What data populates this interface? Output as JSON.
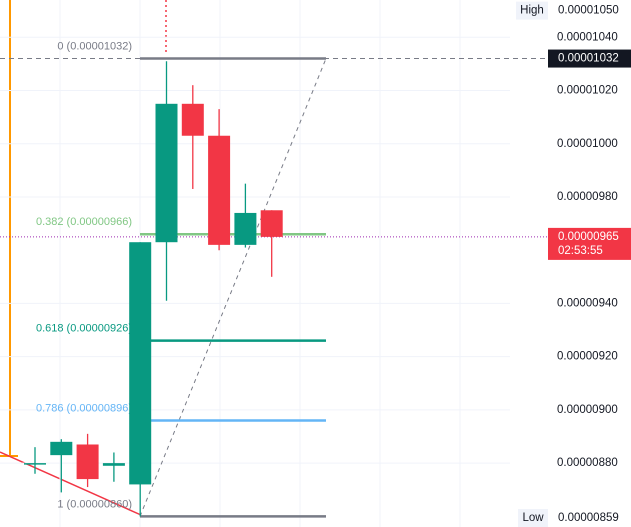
{
  "chart_data": {
    "type": "candlestick",
    "ylim": [
      8.56e-06,
      1.054e-05
    ],
    "yticks": [
      {
        "value": 1.04e-05,
        "label": "0.00001040"
      },
      {
        "value": 1.02e-05,
        "label": "0.00001020"
      },
      {
        "value": 1e-05,
        "label": "0.00001000"
      },
      {
        "value": 9.8e-06,
        "label": "0.00000980"
      },
      {
        "value": 9.4e-06,
        "label": "0.00000940"
      },
      {
        "value": 9.2e-06,
        "label": "0.00000920"
      },
      {
        "value": 9e-06,
        "label": "0.00000900"
      },
      {
        "value": 8.8e-06,
        "label": "0.00000880"
      }
    ],
    "grid": true,
    "up_color": "#089981",
    "down_color": "#f23645",
    "open": [
      8.8e-06,
      8.83e-06,
      8.87e-06,
      8.79e-06,
      8.72e-06,
      9.63e-06,
      1.015e-05,
      1.003e-05,
      9.62e-06,
      9.75e-06
    ],
    "high": [
      8.86e-06,
      8.89e-06,
      8.91e-06,
      8.84e-06,
      9.63e-06,
      1.031e-05,
      1.022e-05,
      1.013e-05,
      9.85e-06,
      9.75e-06
    ],
    "low": [
      8.76e-06,
      8.69e-06,
      8.71e-06,
      8.73e-06,
      8.6e-06,
      9.41e-06,
      9.83e-06,
      9.6e-06,
      9.61e-06,
      9.5e-06
    ],
    "close": [
      8.8e-06,
      8.88e-06,
      8.74e-06,
      8.8e-06,
      9.63e-06,
      1.015e-05,
      1.003e-05,
      9.62e-06,
      9.74e-06,
      9.65e-06
    ],
    "fib_levels": [
      {
        "label": "0 (0.00001032)",
        "value": 1.032e-05,
        "color": "#787b86"
      },
      {
        "label": "0.382 (0.00000966)",
        "value": 9.66e-06,
        "color": "#81c784"
      },
      {
        "label": "0.618 (0.00000926)",
        "value": 9.26e-06,
        "color": "#089981"
      },
      {
        "label": "0.786 (0.00000896)",
        "value": 8.96e-06,
        "color": "#64b5f6"
      },
      {
        "label": "1 (0.00000860)",
        "value": 8.6e-06,
        "color": "#787b86"
      }
    ],
    "high_tag": {
      "tag": "High",
      "value": 1.05e-05,
      "label": "0.00001050"
    },
    "high_price": {
      "value": 1.032e-05,
      "label": "0.00001032"
    },
    "last_price": {
      "value": 9.65e-06,
      "label": "0.00000965",
      "countdown": "02:53:55"
    },
    "low_tag": {
      "tag": "Low",
      "value": 8.59e-06,
      "label": "0.00000859"
    }
  }
}
